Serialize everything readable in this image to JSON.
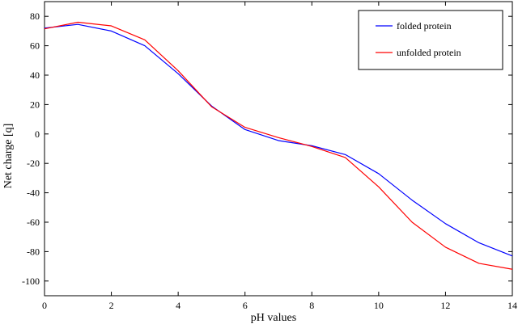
{
  "chart_data": {
    "type": "line",
    "title": "",
    "xlabel": "pH values",
    "ylabel": "Net charge [q]",
    "xlim": [
      0,
      14
    ],
    "ylim": [
      -110,
      90
    ],
    "xticks": [
      0,
      2,
      4,
      6,
      8,
      10,
      12,
      14
    ],
    "yticks": [
      -100,
      -80,
      -60,
      -40,
      -20,
      0,
      20,
      40,
      60,
      80
    ],
    "grid": false,
    "legend_position": "top-right",
    "x": [
      0,
      1,
      2,
      3,
      4,
      5,
      6,
      7,
      8,
      9,
      10,
      11,
      12,
      13,
      14
    ],
    "series": [
      {
        "name": "folded protein",
        "color": "#0000ff",
        "values": [
          72,
          74.5,
          70,
          60,
          41,
          19,
          3,
          -4.5,
          -8,
          -14,
          -27,
          -45,
          -61,
          -74,
          -83
        ]
      },
      {
        "name": "unfolded protein",
        "color": "#ff0000",
        "values": [
          71.5,
          76,
          73.5,
          64,
          43,
          18.5,
          4.5,
          -2.5,
          -8.5,
          -16,
          -36,
          -60,
          -77,
          -88,
          -92
        ]
      }
    ]
  }
}
